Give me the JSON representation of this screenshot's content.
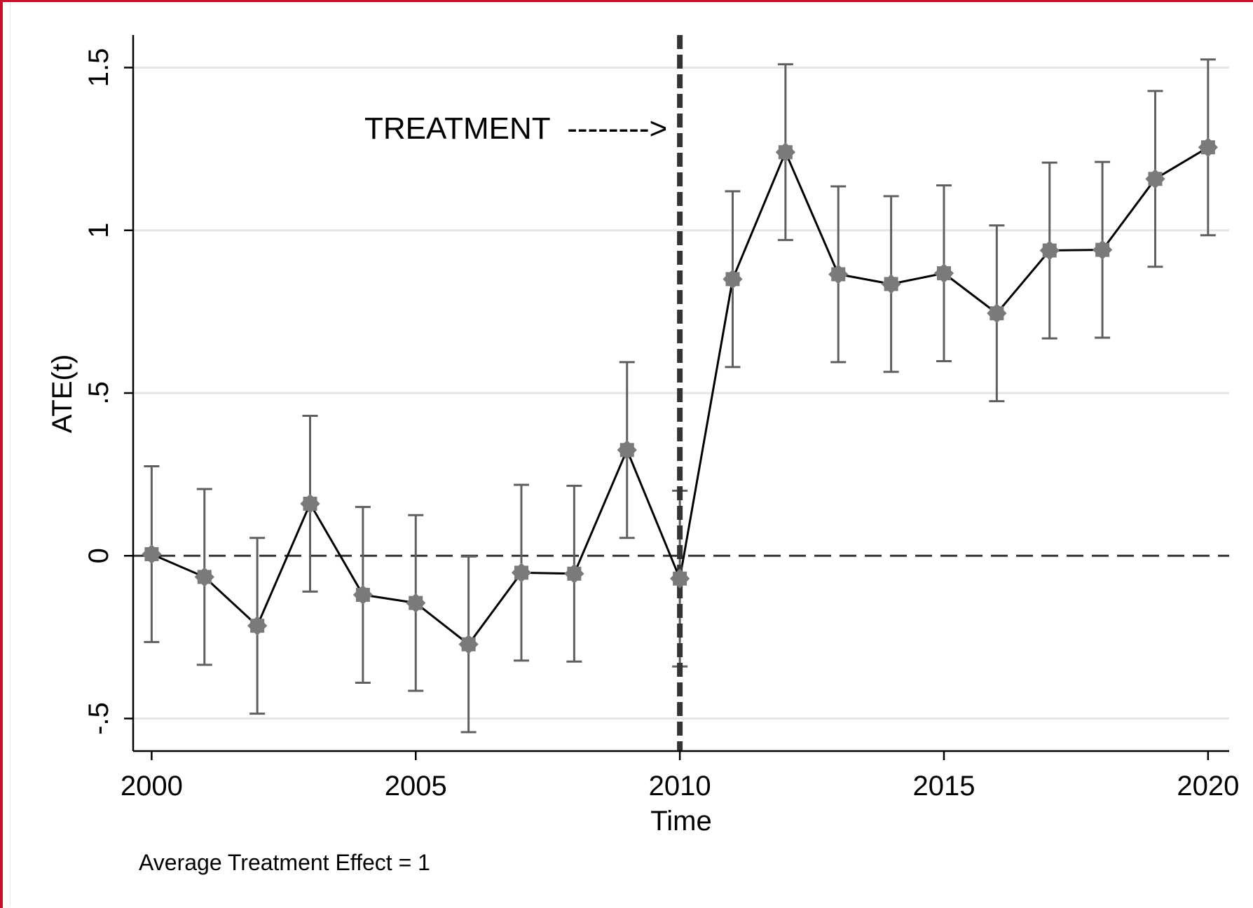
{
  "chart_data": {
    "type": "line",
    "title": "",
    "xlabel": "Time",
    "ylabel": "ATE(t)",
    "xlim": [
      1999.65,
      2020.4
    ],
    "ylim": [
      -0.6,
      1.6
    ],
    "x_ticks": [
      2000,
      2005,
      2010,
      2015,
      2020
    ],
    "x_tick_labels": [
      "2000",
      "2005",
      "2010",
      "2015",
      "2020"
    ],
    "y_ticks": [
      -0.5,
      0,
      0.5,
      1,
      1.5
    ],
    "y_tick_labels": [
      "-.5",
      "0",
      ".5",
      "1",
      "1.5"
    ],
    "grid": true,
    "legend": "none",
    "series": [
      {
        "x": [
          2000,
          2001,
          2002,
          2003,
          2004,
          2005,
          2006,
          2007,
          2008,
          2009,
          2010,
          2011,
          2012,
          2013,
          2014,
          2015,
          2016,
          2017,
          2018,
          2019,
          2020
        ],
        "y": [
          0.005,
          -0.065,
          -0.215,
          0.16,
          -0.12,
          -0.145,
          -0.272,
          -0.052,
          -0.055,
          0.325,
          -0.07,
          0.85,
          1.24,
          0.865,
          0.835,
          0.868,
          0.745,
          0.938,
          0.94,
          1.158,
          1.255
        ],
        "ci_low": [
          -0.265,
          -0.335,
          -0.485,
          -0.11,
          -0.39,
          -0.415,
          -0.542,
          -0.322,
          -0.325,
          0.055,
          -0.34,
          0.58,
          0.97,
          0.595,
          0.565,
          0.598,
          0.475,
          0.668,
          0.67,
          0.888,
          0.985
        ],
        "ci_high": [
          0.275,
          0.205,
          0.055,
          0.43,
          0.15,
          0.125,
          -0.002,
          0.218,
          0.215,
          0.595,
          0.2,
          1.12,
          1.51,
          1.135,
          1.105,
          1.138,
          1.015,
          1.208,
          1.21,
          1.428,
          1.525
        ]
      }
    ],
    "reference_lines": {
      "vertical_x": 2010,
      "horizontal_y": 0
    },
    "annotation": "TREATMENT  -------->",
    "note": "Average Treatment Effect = 1",
    "colors": {
      "line": "#000000",
      "marker": "#7a7a7a",
      "error_bar": "#5f5f5f",
      "grid": "#e6e6e6",
      "reference": "#333333",
      "frame": "#c8102e"
    }
  }
}
